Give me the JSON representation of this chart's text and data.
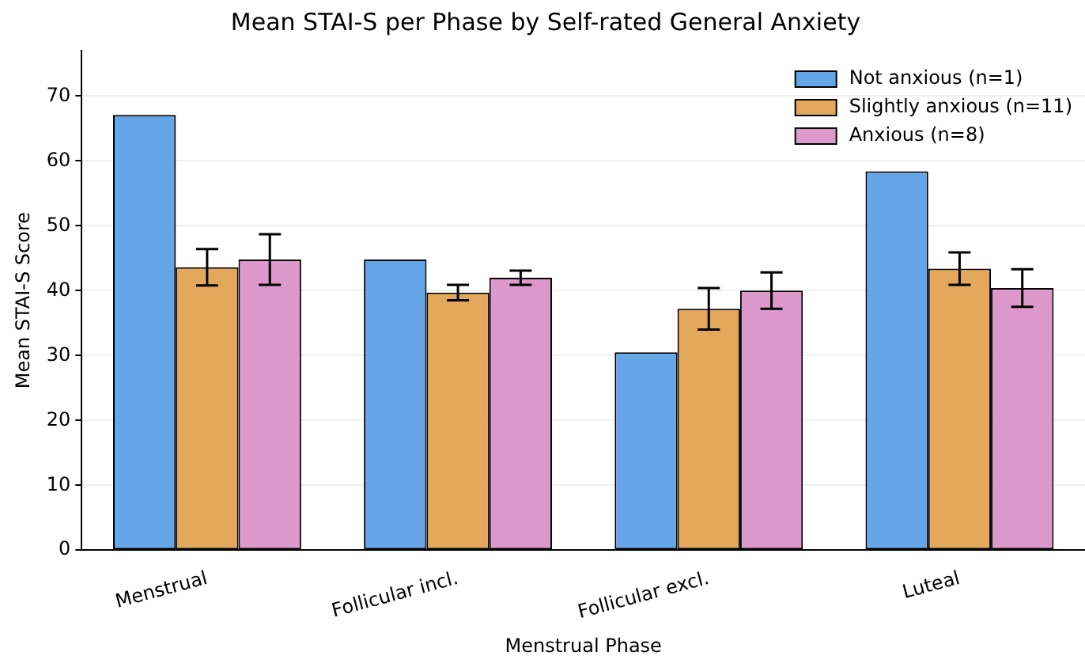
{
  "chart_data": {
    "type": "bar",
    "title": "Mean STAI-S per Phase by Self-rated General Anxiety",
    "xlabel": "Menstrual Phase",
    "ylabel": "Mean STAI-S Score",
    "categories": [
      "Menstrual",
      "Follicular incl.",
      "Follicular excl.",
      "Luteal"
    ],
    "series": [
      {
        "name": "Not anxious (n=1)",
        "color": "#64a6e8",
        "values": [
          67.1,
          44.8,
          30.5,
          58.4
        ]
      },
      {
        "name": "Slightly anxious (n=11)",
        "color": "#e3a85c",
        "values": [
          43.6,
          39.7,
          37.2,
          43.4
        ],
        "errors": [
          2.8,
          1.2,
          3.2,
          2.5
        ]
      },
      {
        "name": "Anxious (n=8)",
        "color": "#dd98cc",
        "values": [
          44.8,
          42.0,
          40.0,
          40.4
        ],
        "errors": [
          3.9,
          1.1,
          2.8,
          2.9
        ]
      }
    ],
    "ylim": [
      0,
      77
    ],
    "yticks": [
      0,
      10,
      20,
      30,
      40,
      50,
      60,
      70
    ],
    "grid": "y",
    "legend": "top right"
  }
}
